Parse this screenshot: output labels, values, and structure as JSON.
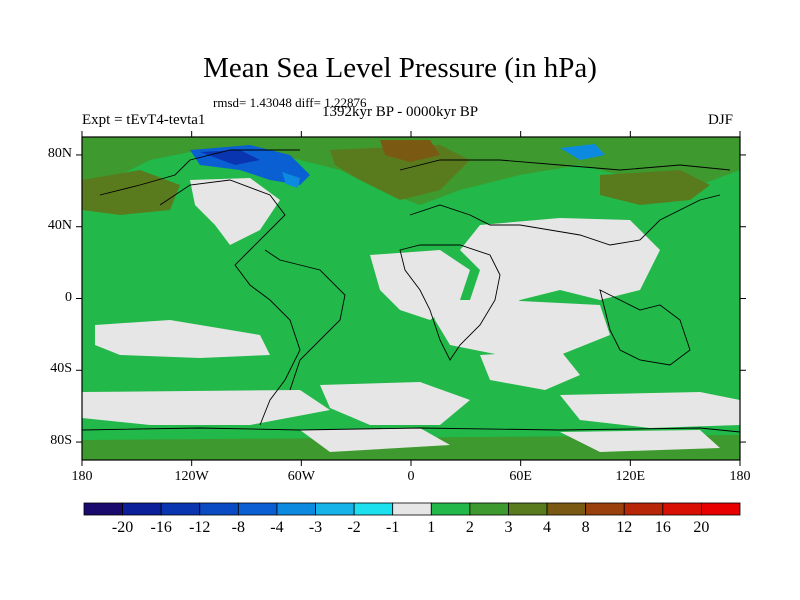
{
  "title": "Mean Sea Level Pressure (in hPa)",
  "stats": "rmsd= 1.43048 diff= 1.22876",
  "experiment": "Expt = tEvT4-tevta1",
  "period": "1392kyr BP - 0000kyr BP",
  "season": "DJF",
  "map": {
    "lat_ticks": [
      {
        "value": 80,
        "label": "80N"
      },
      {
        "value": 40,
        "label": "40N"
      },
      {
        "value": 0,
        "label": "0"
      },
      {
        "value": -40,
        "label": "40S"
      },
      {
        "value": -80,
        "label": "80S"
      }
    ],
    "lon_ticks": [
      {
        "value": -180,
        "label": "180"
      },
      {
        "value": -120,
        "label": "120W"
      },
      {
        "value": -60,
        "label": "60W"
      },
      {
        "value": 0,
        "label": "0"
      },
      {
        "value": 60,
        "label": "60E"
      },
      {
        "value": 120,
        "label": "120E"
      },
      {
        "value": 180,
        "label": "180"
      }
    ],
    "lon_range": [
      -180,
      180
    ],
    "lat_range": [
      -90,
      90
    ],
    "background_color": "#22b84a"
  },
  "colorbar": {
    "labels": [
      "-20",
      "-16",
      "-12",
      "-8",
      "-4",
      "-3",
      "-2",
      "-1",
      "1",
      "2",
      "3",
      "4",
      "8",
      "12",
      "16",
      "20"
    ],
    "colors": [
      "#1a0a6e",
      "#0c1f9a",
      "#0a35b0",
      "#0a4bc3",
      "#0a5fd3",
      "#0c8ae0",
      "#15b3e8",
      "#1ce0ee",
      "#e6e6e6",
      "#22b84a",
      "#3e9a2e",
      "#5a7a1e",
      "#7a5a12",
      "#9a400c",
      "#b82608",
      "#d81004",
      "#e80000"
    ]
  }
}
